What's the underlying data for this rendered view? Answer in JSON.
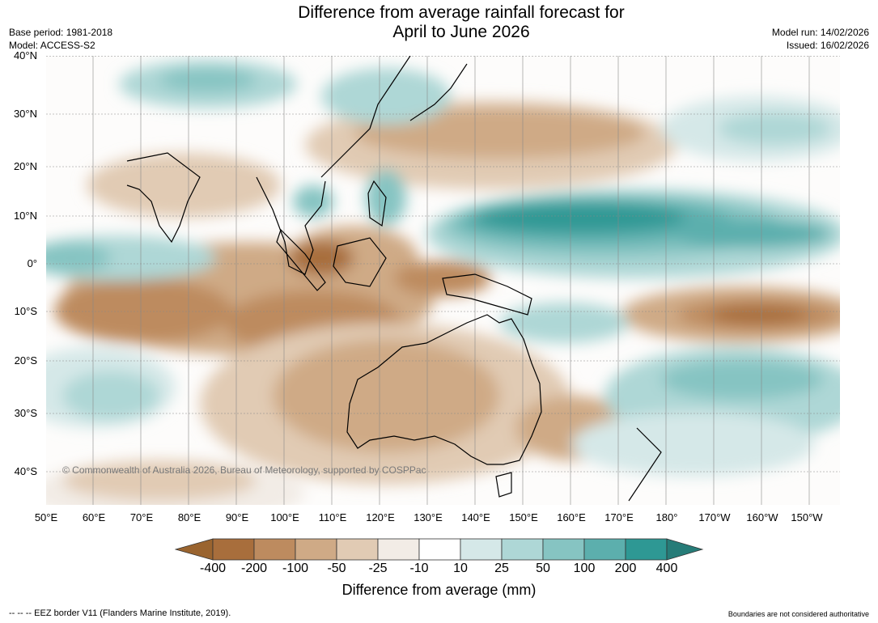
{
  "title": {
    "line1": "Difference from average rainfall forecast for",
    "line2": "April to June 2026"
  },
  "meta": {
    "base_period": "Base period: 1981-2018",
    "model": "Model: ACCESS-S2",
    "model_run": "Model run: 14/02/2026",
    "issued": "Issued: 16/02/2026"
  },
  "map": {
    "lat_labels": [
      "40°N",
      "30°N",
      "20°N",
      "10°N",
      "0°",
      "10°S",
      "20°S",
      "30°S",
      "40°S"
    ],
    "lon_labels": [
      "50°E",
      "60°E",
      "70°E",
      "80°E",
      "90°E",
      "100°E",
      "110°E",
      "120°E",
      "130°E",
      "140°E",
      "150°E",
      "160°E",
      "170°E",
      "180°",
      "170°W",
      "160°W",
      "150°W"
    ],
    "copyright": "© Commonwealth of Australia 2026, Bureau of Meteorology, supported by COSPPac"
  },
  "legend": {
    "title": "Difference from average (mm)",
    "ticks": [
      "-400",
      "-200",
      "-100",
      "-50",
      "-25",
      "-10",
      "10",
      "25",
      "50",
      "100",
      "200",
      "400"
    ],
    "colors": [
      "#a86e3c",
      "#bd8b5f",
      "#cfaa86",
      "#e1cbb4",
      "#f2ece6",
      "#ffffff",
      "#d5e8e8",
      "#aed7d6",
      "#86c4c2",
      "#5cafad",
      "#2e9894"
    ],
    "extend_low_color": "#9a642f",
    "extend_high_color": "#267c78"
  },
  "footer": {
    "eez": "--  --  -- EEZ border V11 (Flanders Marine Institute, 2019).",
    "disclaimer": "Boundaries are not considered authoritative"
  }
}
